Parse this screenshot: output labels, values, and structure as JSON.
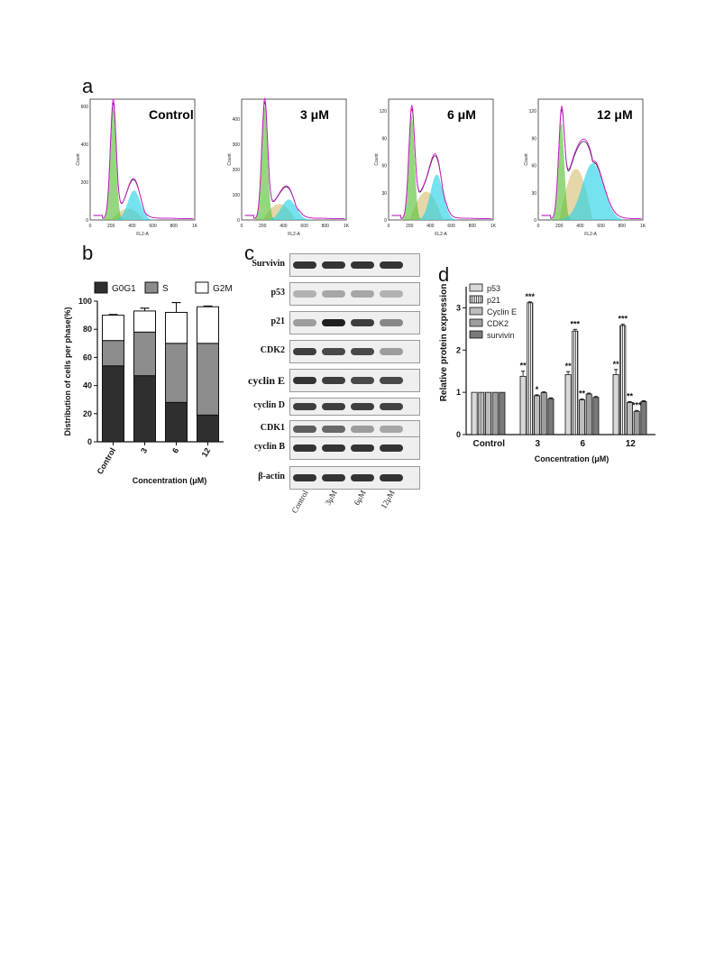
{
  "panel_labels": {
    "a": "a",
    "b": "b",
    "c": "c",
    "d": "d"
  },
  "flow": {
    "xlabel": "FL2-A",
    "ylabel": "Count",
    "xticks": [
      "0",
      "200",
      "400",
      "600",
      "800",
      "1K"
    ],
    "panels": [
      {
        "title": "Control",
        "yticks": [
          "0",
          "200",
          "400",
          "600"
        ],
        "ymax": 600
      },
      {
        "title": "3 μM",
        "yticks": [
          "0",
          "100",
          "200",
          "300",
          "400"
        ],
        "ymax": 450
      },
      {
        "title": "6 μM",
        "yticks": [
          "0",
          "30",
          "60",
          "90",
          "120"
        ],
        "ymax": 125
      },
      {
        "title": "12 μM",
        "yticks": [
          "0",
          "30",
          "60",
          "90",
          "120"
        ],
        "ymax": 125
      }
    ]
  },
  "chart_data": [
    {
      "type": "bar",
      "stacked": true,
      "categories": [
        "Control",
        "3",
        "6",
        "12"
      ],
      "series": [
        {
          "name": "G0G1",
          "values": [
            54,
            47,
            28,
            19
          ],
          "errors": [
            2,
            1.5,
            3,
            2
          ],
          "color": "#2f2f2f"
        },
        {
          "name": "S",
          "values": [
            18,
            31,
            42,
            51
          ],
          "errors": [
            1.5,
            1,
            12,
            0.5
          ],
          "color": "#8c8c8c"
        },
        {
          "name": "G2M",
          "values": [
            18,
            15,
            22,
            26
          ],
          "errors": [
            0.5,
            2,
            7,
            0.5
          ],
          "color": "#ffffff"
        }
      ],
      "xlabel": "Concentration (μM)",
      "ylabel": "Distribution of cells per phase(%)",
      "ylim": [
        0,
        100
      ],
      "yticks": [
        "0",
        "20",
        "40",
        "60",
        "80",
        "100"
      ],
      "legend": "top"
    },
    {
      "type": "bar",
      "categories": [
        "Control",
        "3",
        "6",
        "12"
      ],
      "series": [
        {
          "name": "p53",
          "values": [
            1.0,
            1.38,
            1.42,
            1.42
          ],
          "errors": [
            0,
            0.12,
            0.07,
            0.12
          ]
        },
        {
          "name": "p21",
          "values": [
            1.0,
            3.12,
            2.45,
            2.58
          ],
          "errors": [
            0,
            0.02,
            0.04,
            0.03
          ]
        },
        {
          "name": "Cyclin E",
          "values": [
            1.0,
            0.92,
            0.82,
            0.76
          ],
          "errors": [
            0,
            0.02,
            0.02,
            0.02
          ]
        },
        {
          "name": "CDK2",
          "values": [
            1.0,
            0.99,
            0.96,
            0.55
          ],
          "errors": [
            0,
            0.02,
            0.02,
            0.02
          ]
        },
        {
          "name": "survivin",
          "values": [
            1.0,
            0.85,
            0.88,
            0.78
          ],
          "errors": [
            0,
            0.02,
            0.02,
            0.02
          ]
        }
      ],
      "significance": [
        {
          "category": "3",
          "series": "p53",
          "label": "**"
        },
        {
          "category": "3",
          "series": "p21",
          "label": "***"
        },
        {
          "category": "3",
          "series": "Cyclin E",
          "label": "*"
        },
        {
          "category": "6",
          "series": "p53",
          "label": "**"
        },
        {
          "category": "6",
          "series": "p21",
          "label": "***"
        },
        {
          "category": "6",
          "series": "Cyclin E",
          "label": "**"
        },
        {
          "category": "12",
          "series": "p53",
          "label": "**"
        },
        {
          "category": "12",
          "series": "p21",
          "label": "***"
        },
        {
          "category": "12",
          "series": "Cyclin E",
          "label": "**"
        },
        {
          "category": "12",
          "series": "CDK2",
          "label": "***"
        }
      ],
      "xlabel": "Concentration (μM)",
      "ylabel": "Relative protein expression",
      "ylim": [
        0,
        3.5
      ],
      "yticks": [
        "0",
        "1",
        "2",
        "3"
      ],
      "legend": "top-left"
    }
  ],
  "western": {
    "lanes": [
      "Control",
      "3μM",
      "6μM",
      "12μM"
    ],
    "blots": [
      {
        "label": "Survivin",
        "intensity": [
          0.85,
          0.85,
          0.85,
          0.85
        ]
      },
      {
        "label": "p53",
        "intensity": [
          0.25,
          0.3,
          0.3,
          0.25
        ]
      },
      {
        "label": "p21",
        "intensity": [
          0.35,
          0.95,
          0.8,
          0.45
        ]
      },
      {
        "label": "CDK2",
        "intensity": [
          0.8,
          0.75,
          0.75,
          0.35
        ]
      },
      {
        "label": "cyclin E",
        "intensity": [
          0.85,
          0.8,
          0.75,
          0.75
        ]
      },
      {
        "label": "cyclin D",
        "intensity": [
          0.8,
          0.8,
          0.8,
          0.78
        ]
      },
      {
        "label": "CDK1",
        "intensity": [
          0.65,
          0.6,
          0.35,
          0.3
        ]
      },
      {
        "label": "cyclin B",
        "intensity": [
          0.85,
          0.85,
          0.85,
          0.85
        ]
      },
      {
        "label": "β-actin",
        "intensity": [
          0.85,
          0.85,
          0.85,
          0.85
        ]
      }
    ]
  }
}
